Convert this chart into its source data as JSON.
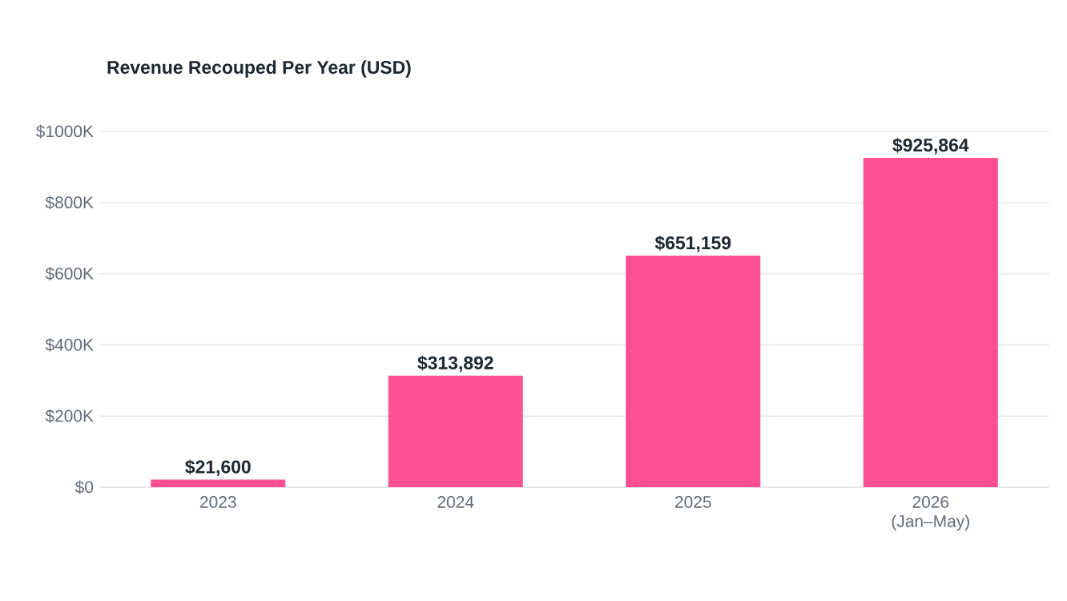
{
  "chart_data": {
    "type": "bar",
    "title": "Revenue Recouped Per Year (USD)",
    "categories": [
      "2023",
      "2024",
      "2025",
      "2026 (Jan–May)"
    ],
    "values": [
      21600,
      313892,
      651159,
      925864
    ],
    "value_labels": [
      "$21,600",
      "$313,892",
      "$651,159",
      "$925,864"
    ],
    "color": "#ff4f93",
    "ylim": [
      0,
      1000000
    ],
    "yticks": [
      {
        "value": 0,
        "label": "$0"
      },
      {
        "value": 200000,
        "label": "$200K"
      },
      {
        "value": 400000,
        "label": "$400K"
      },
      {
        "value": 600000,
        "label": "$600K"
      },
      {
        "value": 800000,
        "label": "$800K"
      },
      {
        "value": 1000000,
        "label": "$1000K"
      }
    ],
    "grid": "y"
  }
}
